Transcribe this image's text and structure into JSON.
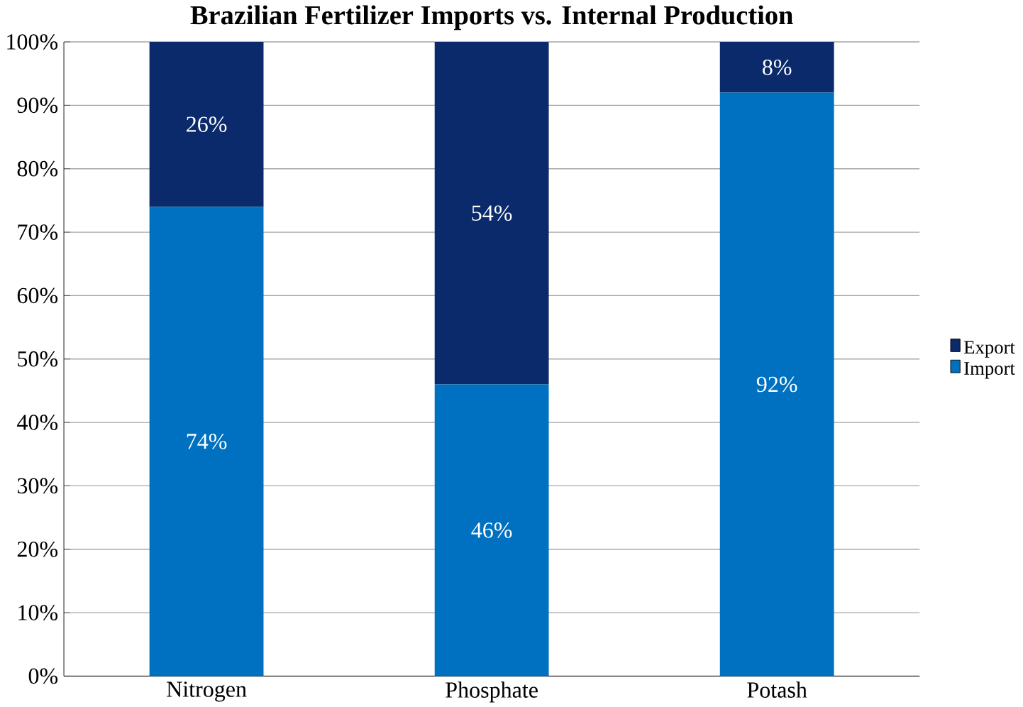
{
  "chart_data": {
    "type": "bar",
    "stacked": true,
    "title": "Brazilian Fertilizer Imports vs. Internal Production",
    "categories": [
      "Nitrogen",
      "Phosphate",
      "Potash"
    ],
    "series": [
      {
        "name": "Import",
        "color": "#0070c0",
        "values": [
          74,
          46,
          92
        ],
        "value_labels": [
          "74%",
          "46%",
          "92%"
        ]
      },
      {
        "name": "Export",
        "color": "#0b2a6b",
        "values": [
          26,
          54,
          8
        ],
        "value_labels": [
          "26%",
          "54%",
          "8%"
        ]
      }
    ],
    "ylim": [
      0,
      100
    ],
    "yticks": [
      {
        "value": 0,
        "label": "0%"
      },
      {
        "value": 10,
        "label": "10%"
      },
      {
        "value": 20,
        "label": "20%"
      },
      {
        "value": 30,
        "label": "30%"
      },
      {
        "value": 40,
        "label": "40%"
      },
      {
        "value": 50,
        "label": "50%"
      },
      {
        "value": 60,
        "label": "60%"
      },
      {
        "value": 70,
        "label": "70%"
      },
      {
        "value": 80,
        "label": "80%"
      },
      {
        "value": 90,
        "label": "90%"
      },
      {
        "value": 100,
        "label": "100%"
      }
    ],
    "grid": "y",
    "legend": "right"
  }
}
